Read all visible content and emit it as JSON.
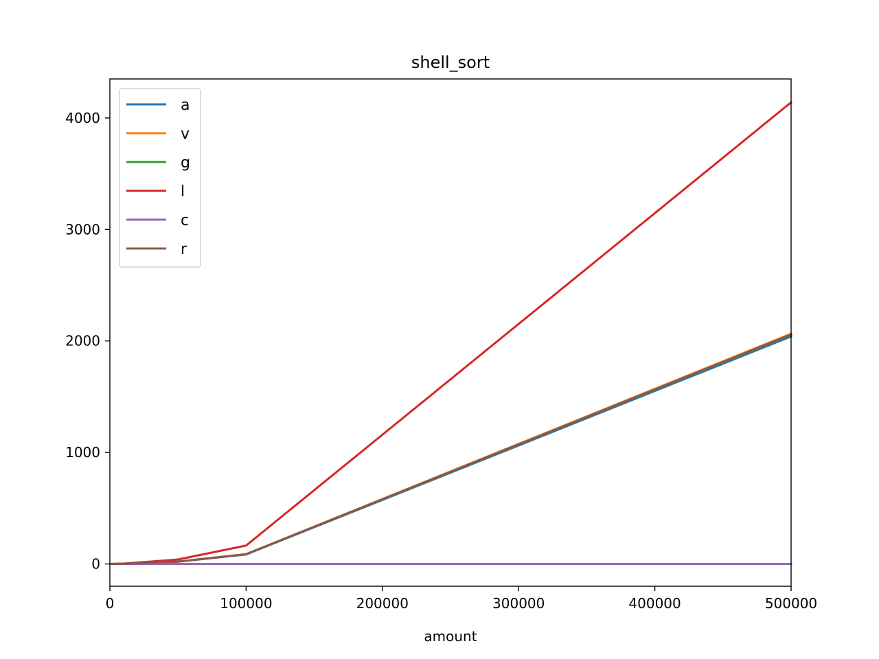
{
  "chart_data": {
    "type": "line",
    "title": "shell_sort",
    "xlabel": "amount",
    "ylabel": "",
    "xlim": [
      0,
      500000
    ],
    "ylim": [
      -200,
      4350
    ],
    "xticks": [
      0,
      100000,
      200000,
      300000,
      400000,
      500000
    ],
    "xtick_labels": [
      "0",
      "100000",
      "200000",
      "300000",
      "400000",
      "500000"
    ],
    "yticks": [
      0,
      1000,
      2000,
      3000,
      4000
    ],
    "ytick_labels": [
      "0",
      "1000",
      "2000",
      "3000",
      "4000"
    ],
    "grid": false,
    "legend_position": "upper-left",
    "x": [
      1000,
      10000,
      50000,
      100000,
      500000
    ],
    "series": [
      {
        "name": "a",
        "color": "#1f77b4",
        "values": [
          0.2,
          1.8,
          20,
          85,
          2040
        ]
      },
      {
        "name": "v",
        "color": "#ff7f0e",
        "values": [
          0.2,
          1.9,
          21,
          88,
          2065
        ]
      },
      {
        "name": "g",
        "color": "#2ca02c",
        "values": [
          0.2,
          1.9,
          21,
          87,
          2055
        ]
      },
      {
        "name": "l",
        "color": "#d62728",
        "values": [
          0.3,
          3.5,
          40,
          165,
          4140
        ]
      },
      {
        "name": "c",
        "color": "#9467bd",
        "values": [
          0,
          0,
          0,
          0,
          0
        ]
      },
      {
        "name": "r",
        "color": "#8c564b",
        "values": [
          0.2,
          1.9,
          21,
          87,
          2058
        ]
      }
    ]
  }
}
